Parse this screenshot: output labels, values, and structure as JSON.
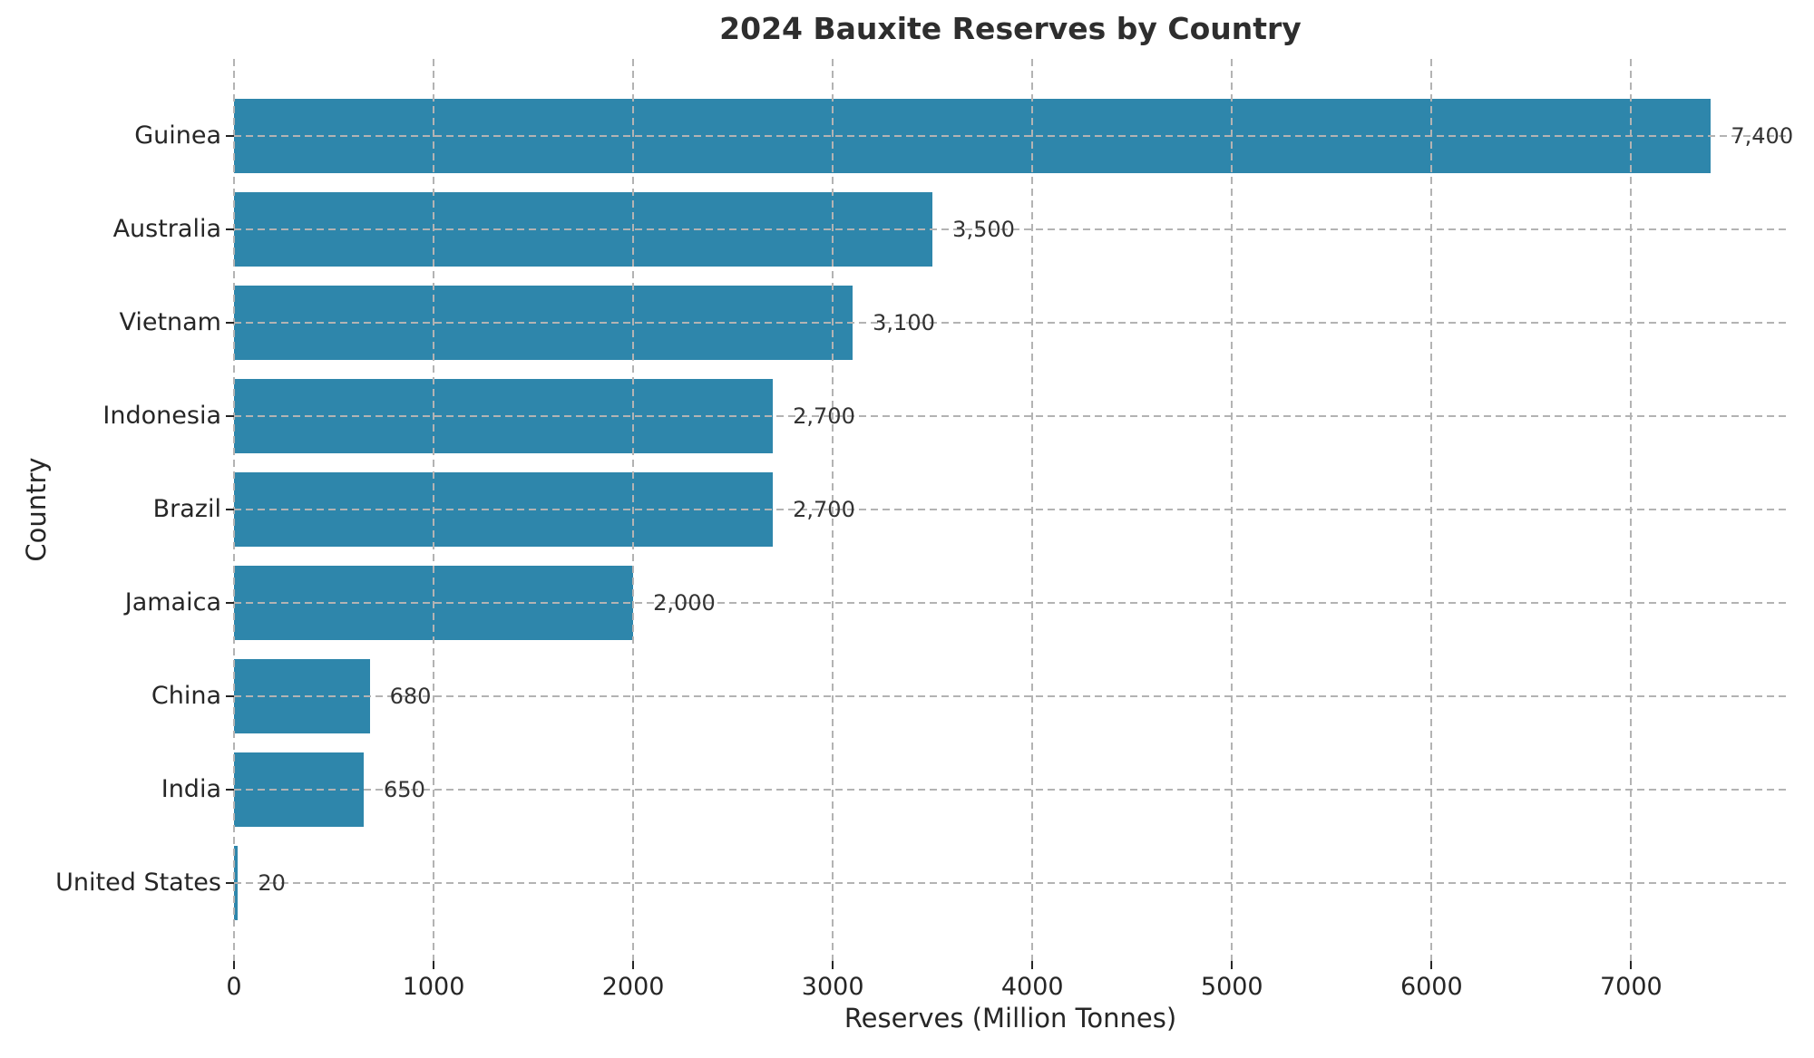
{
  "figure": {
    "title": "2024 Bauxite Reserves by Country"
  },
  "chart_data": {
    "type": "bar",
    "orientation": "horizontal",
    "title": "2024 Bauxite Reserves by Country",
    "xlabel": "Reserves (Million Tonnes)",
    "ylabel": "Country",
    "categories": [
      "Guinea",
      "Australia",
      "Vietnam",
      "Indonesia",
      "Brazil",
      "Jamaica",
      "China",
      "India",
      "United States"
    ],
    "values": [
      7400,
      3500,
      3100,
      2700,
      2700,
      2000,
      680,
      650,
      20
    ],
    "value_labels": [
      "7,400",
      "3,500",
      "3,100",
      "2,700",
      "2,700",
      "2,000",
      "680",
      "650",
      "20"
    ],
    "x_tick_values": [
      0,
      1000,
      2000,
      3000,
      4000,
      5000,
      6000,
      7000
    ],
    "x_tick_labels": [
      "0",
      "1000",
      "2000",
      "3000",
      "4000",
      "5000",
      "6000",
      "7000"
    ],
    "xlim": [
      0,
      7780
    ],
    "grid": "dashed, both axes, drawn above bars",
    "legend_position": "none",
    "bar_color": "#2E86AB",
    "grid_color": "#b3b3b3",
    "text_color": "#262626",
    "value_text_color": "#333333"
  }
}
